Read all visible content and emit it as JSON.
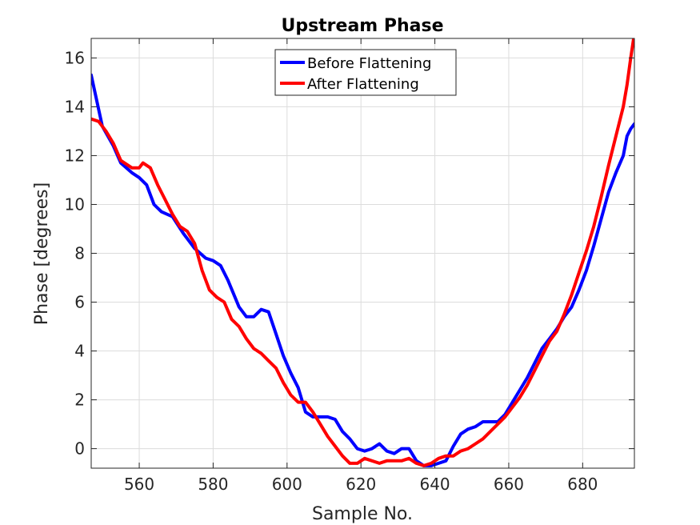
{
  "chart_data": {
    "type": "line",
    "title": "Upstream Phase",
    "xlabel": "Sample No.",
    "ylabel": "Phase [degrees]",
    "xlim": [
      547,
      694
    ],
    "ylim": [
      -0.8,
      16.8
    ],
    "xticks": [
      560,
      580,
      600,
      620,
      640,
      660,
      680
    ],
    "yticks": [
      0,
      2,
      4,
      6,
      8,
      10,
      12,
      14,
      16
    ],
    "grid": true,
    "legend_position": "top-center",
    "series": [
      {
        "name": "Before Flattening",
        "color": "#0000ff",
        "points": [
          [
            547,
            15.3
          ],
          [
            550,
            13.2
          ],
          [
            553,
            12.4
          ],
          [
            555,
            11.7
          ],
          [
            558,
            11.3
          ],
          [
            560,
            11.1
          ],
          [
            562,
            10.8
          ],
          [
            564,
            10.0
          ],
          [
            566,
            9.7
          ],
          [
            569,
            9.5
          ],
          [
            572,
            8.8
          ],
          [
            575,
            8.2
          ],
          [
            578,
            7.8
          ],
          [
            580,
            7.7
          ],
          [
            582,
            7.5
          ],
          [
            584,
            6.9
          ],
          [
            587,
            5.8
          ],
          [
            589,
            5.4
          ],
          [
            591,
            5.4
          ],
          [
            593,
            5.7
          ],
          [
            595,
            5.6
          ],
          [
            597,
            4.7
          ],
          [
            599,
            3.8
          ],
          [
            601,
            3.1
          ],
          [
            603,
            2.5
          ],
          [
            605,
            1.5
          ],
          [
            607,
            1.3
          ],
          [
            609,
            1.3
          ],
          [
            611,
            1.3
          ],
          [
            613,
            1.2
          ],
          [
            615,
            0.7
          ],
          [
            617,
            0.4
          ],
          [
            619,
            0.0
          ],
          [
            621,
            -0.1
          ],
          [
            623,
            0.0
          ],
          [
            625,
            0.2
          ],
          [
            627,
            -0.1
          ],
          [
            629,
            -0.2
          ],
          [
            631,
            0.0
          ],
          [
            633,
            0.0
          ],
          [
            635,
            -0.5
          ],
          [
            637,
            -0.7
          ],
          [
            639,
            -0.7
          ],
          [
            641,
            -0.6
          ],
          [
            643,
            -0.5
          ],
          [
            645,
            0.1
          ],
          [
            647,
            0.6
          ],
          [
            649,
            0.8
          ],
          [
            651,
            0.9
          ],
          [
            653,
            1.1
          ],
          [
            655,
            1.1
          ],
          [
            657,
            1.1
          ],
          [
            659,
            1.4
          ],
          [
            661,
            1.9
          ],
          [
            663,
            2.4
          ],
          [
            665,
            2.9
          ],
          [
            667,
            3.5
          ],
          [
            669,
            4.1
          ],
          [
            671,
            4.5
          ],
          [
            673,
            4.9
          ],
          [
            675,
            5.4
          ],
          [
            677,
            5.8
          ],
          [
            679,
            6.5
          ],
          [
            681,
            7.3
          ],
          [
            683,
            8.3
          ],
          [
            685,
            9.4
          ],
          [
            687,
            10.5
          ],
          [
            689,
            11.3
          ],
          [
            691,
            12.0
          ],
          [
            692,
            12.8
          ],
          [
            693,
            13.1
          ],
          [
            694,
            13.3
          ]
        ]
      },
      {
        "name": "After Flattening",
        "color": "#ff0000",
        "points": [
          [
            547,
            13.5
          ],
          [
            549,
            13.4
          ],
          [
            551,
            13.0
          ],
          [
            553,
            12.5
          ],
          [
            555,
            11.8
          ],
          [
            558,
            11.5
          ],
          [
            560,
            11.5
          ],
          [
            561,
            11.7
          ],
          [
            563,
            11.5
          ],
          [
            565,
            10.8
          ],
          [
            567,
            10.2
          ],
          [
            569,
            9.6
          ],
          [
            571,
            9.1
          ],
          [
            573,
            8.9
          ],
          [
            575,
            8.4
          ],
          [
            577,
            7.3
          ],
          [
            579,
            6.5
          ],
          [
            581,
            6.2
          ],
          [
            583,
            6.0
          ],
          [
            585,
            5.3
          ],
          [
            587,
            5.0
          ],
          [
            589,
            4.5
          ],
          [
            591,
            4.1
          ],
          [
            593,
            3.9
          ],
          [
            595,
            3.6
          ],
          [
            597,
            3.3
          ],
          [
            599,
            2.7
          ],
          [
            601,
            2.2
          ],
          [
            603,
            1.9
          ],
          [
            605,
            1.9
          ],
          [
            607,
            1.5
          ],
          [
            609,
            1.0
          ],
          [
            611,
            0.5
          ],
          [
            613,
            0.1
          ],
          [
            615,
            -0.3
          ],
          [
            617,
            -0.6
          ],
          [
            619,
            -0.6
          ],
          [
            621,
            -0.4
          ],
          [
            623,
            -0.5
          ],
          [
            625,
            -0.6
          ],
          [
            627,
            -0.5
          ],
          [
            629,
            -0.5
          ],
          [
            631,
            -0.5
          ],
          [
            633,
            -0.4
          ],
          [
            635,
            -0.6
          ],
          [
            637,
            -0.7
          ],
          [
            639,
            -0.6
          ],
          [
            641,
            -0.4
          ],
          [
            643,
            -0.3
          ],
          [
            645,
            -0.3
          ],
          [
            647,
            -0.1
          ],
          [
            649,
            0.0
          ],
          [
            651,
            0.2
          ],
          [
            653,
            0.4
          ],
          [
            655,
            0.7
          ],
          [
            657,
            1.0
          ],
          [
            659,
            1.3
          ],
          [
            661,
            1.7
          ],
          [
            663,
            2.1
          ],
          [
            665,
            2.6
          ],
          [
            667,
            3.2
          ],
          [
            669,
            3.8
          ],
          [
            671,
            4.4
          ],
          [
            673,
            4.8
          ],
          [
            675,
            5.5
          ],
          [
            677,
            6.3
          ],
          [
            679,
            7.2
          ],
          [
            681,
            8.1
          ],
          [
            683,
            9.1
          ],
          [
            685,
            10.3
          ],
          [
            687,
            11.6
          ],
          [
            689,
            12.8
          ],
          [
            691,
            14.0
          ],
          [
            692,
            14.9
          ],
          [
            693,
            16.0
          ],
          [
            694,
            17.0
          ]
        ]
      }
    ]
  }
}
